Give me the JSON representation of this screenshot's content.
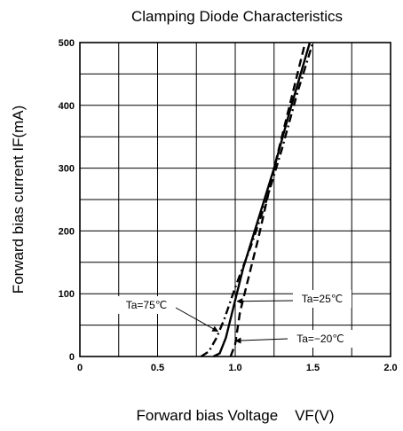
{
  "chart_data": {
    "type": "line",
    "title": "Clamping Diode Characteristics",
    "xlabel": "Forward bias Voltage    VF(V)",
    "ylabel": "Forward bias current IF(mA)",
    "xlim": [
      0,
      2.0
    ],
    "ylim": [
      0,
      500
    ],
    "grid": true,
    "x_ticks": [
      {
        "value": 0,
        "label": "0"
      },
      {
        "value": 0.5,
        "label": "0.5"
      },
      {
        "value": 1.0,
        "label": "1.0"
      },
      {
        "value": 1.5,
        "label": "1.5"
      },
      {
        "value": 2.0,
        "label": "2.0"
      }
    ],
    "y_ticks": [
      {
        "value": 0,
        "label": "0"
      },
      {
        "value": 100,
        "label": "100"
      },
      {
        "value": 200,
        "label": "200"
      },
      {
        "value": 300,
        "label": "300"
      },
      {
        "value": 400,
        "label": "400"
      },
      {
        "value": 500,
        "label": "500"
      }
    ],
    "series": [
      {
        "name": "Ta=75℃",
        "dash": "dash-dot",
        "points": [
          [
            0.78,
            0
          ],
          [
            0.83,
            8
          ],
          [
            0.88,
            30
          ],
          [
            0.93,
            60
          ],
          [
            1.0,
            110
          ],
          [
            1.1,
            175
          ],
          [
            1.2,
            248
          ],
          [
            1.3,
            330
          ],
          [
            1.4,
            420
          ],
          [
            1.5,
            500
          ]
        ]
      },
      {
        "name": "Ta=25℃",
        "dash": "solid",
        "points": [
          [
            0.86,
            0
          ],
          [
            0.9,
            5
          ],
          [
            0.94,
            30
          ],
          [
            0.98,
            70
          ],
          [
            1.05,
            140
          ],
          [
            1.15,
            220
          ],
          [
            1.25,
            300
          ],
          [
            1.35,
            390
          ],
          [
            1.48,
            500
          ]
        ]
      },
      {
        "name": "Ta=−20℃",
        "dash": "dashed",
        "points": [
          [
            0.97,
            0
          ],
          [
            1.0,
            20
          ],
          [
            1.03,
            70
          ],
          [
            1.08,
            120
          ],
          [
            1.15,
            190
          ],
          [
            1.25,
            300
          ],
          [
            1.35,
            400
          ],
          [
            1.45,
            500
          ]
        ]
      }
    ],
    "annotations": [
      {
        "text": "Ta=75℃",
        "series": 0,
        "at": [
          0.9,
          40
        ]
      },
      {
        "text": "Ta=25℃",
        "series": 1,
        "at": [
          1.0,
          88
        ]
      },
      {
        "text": "Ta=−20℃",
        "series": 2,
        "at": [
          0.99,
          25
        ]
      }
    ]
  }
}
